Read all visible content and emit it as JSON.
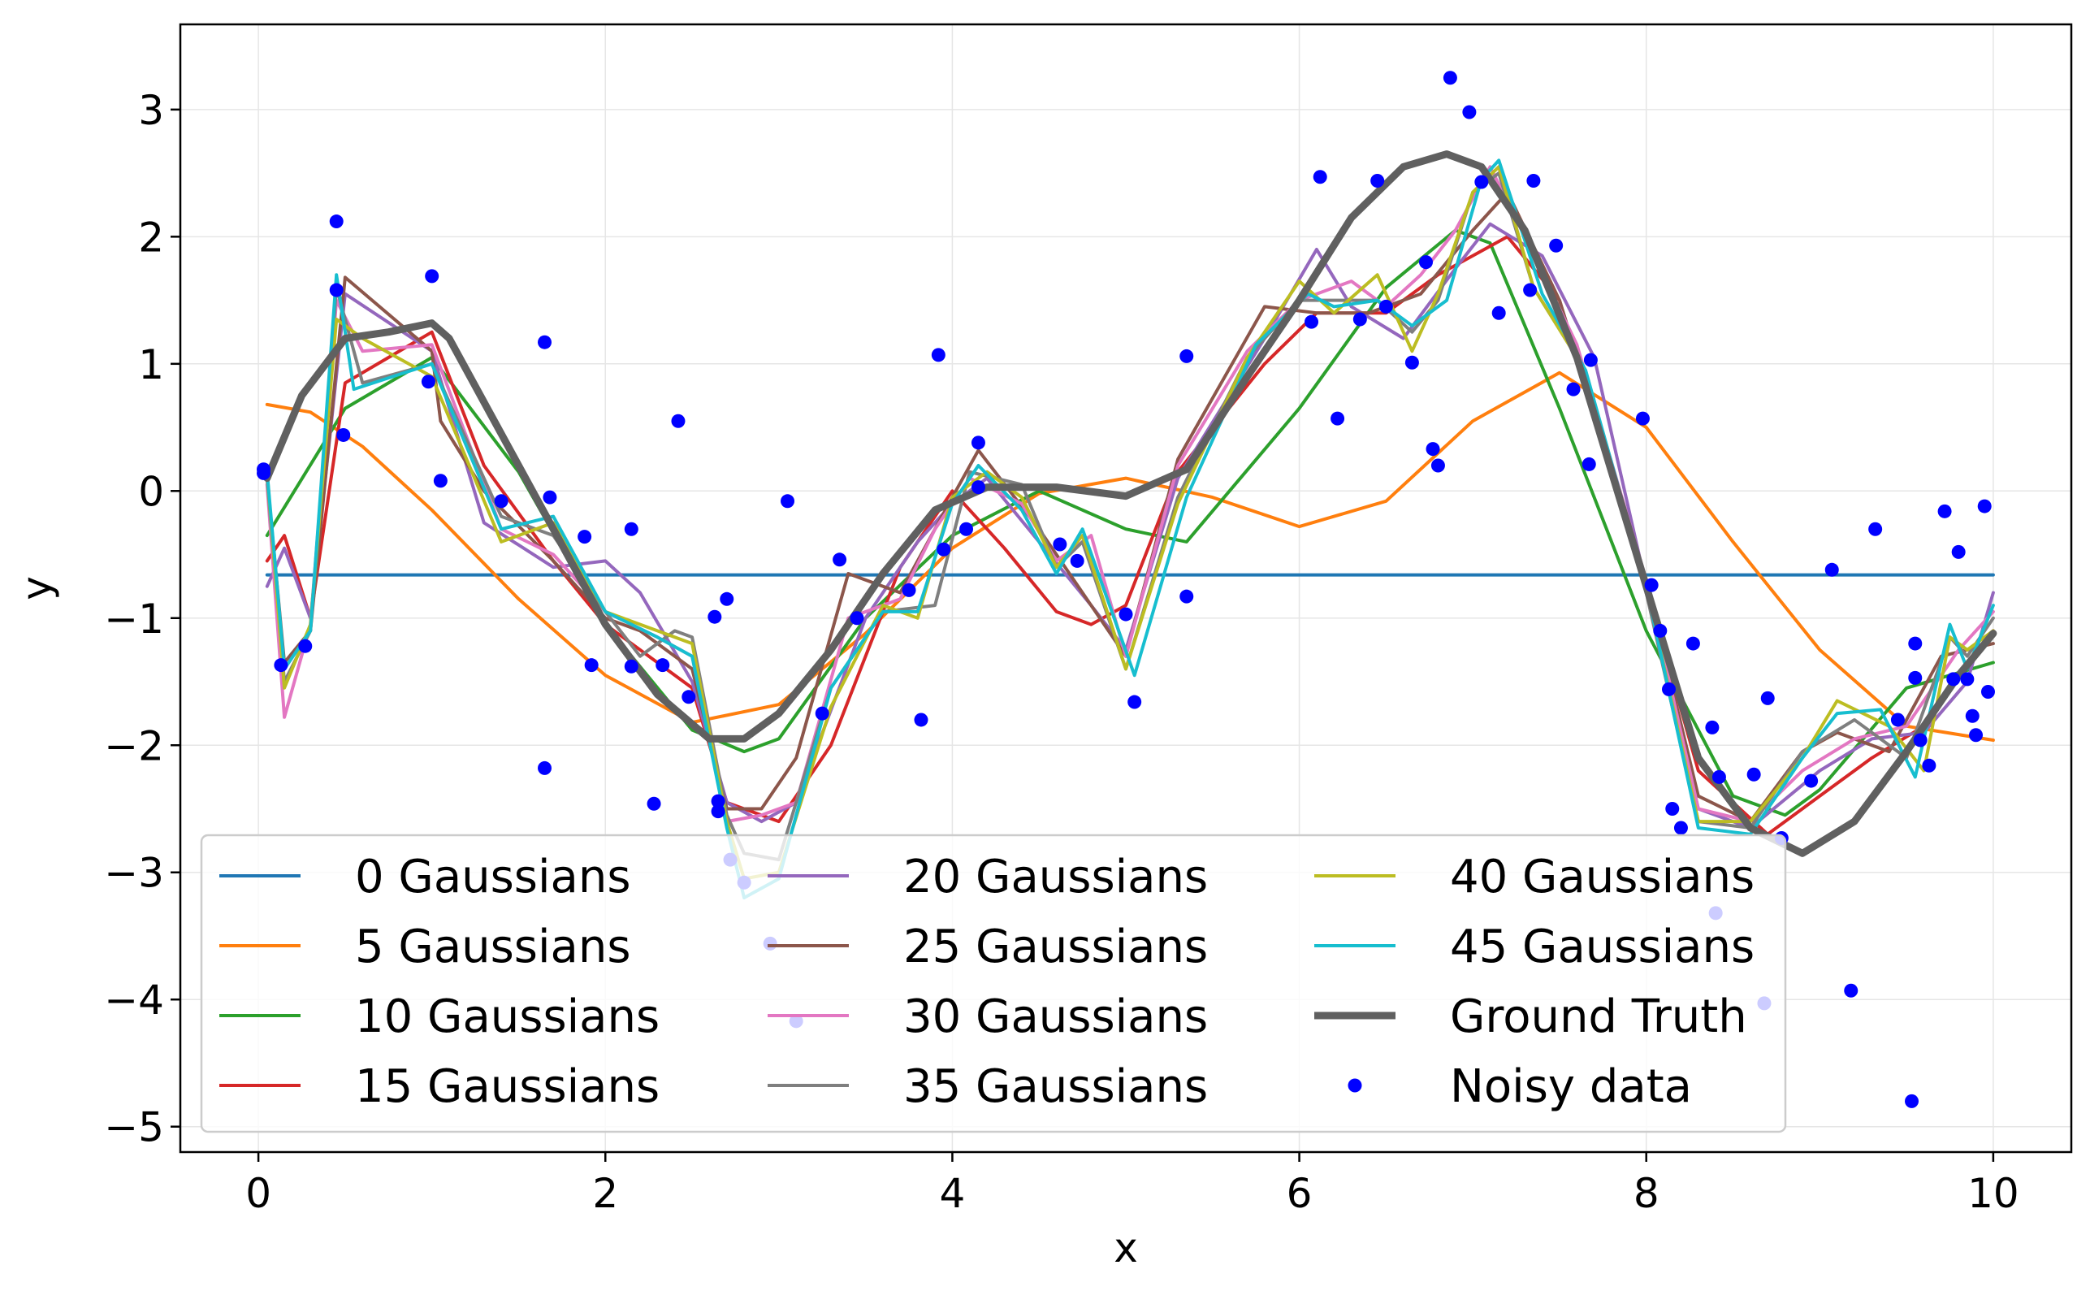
{
  "chart_data": {
    "type": "line",
    "xlabel": "x",
    "ylabel": "y",
    "xlim": [
      -0.45,
      10.45
    ],
    "ylim": [
      -5.2,
      3.67
    ],
    "xticks": [
      0,
      2,
      4,
      6,
      8,
      10
    ],
    "yticks": [
      -5,
      -4,
      -3,
      -2,
      -1,
      0,
      1,
      2,
      3
    ],
    "grid": true,
    "legend": {
      "placement": "lower-left",
      "columns": 3
    },
    "colors": {
      "0 Gaussians": "#1f77b4",
      "5 Gaussians": "#ff7f0e",
      "10 Gaussians": "#2ca02c",
      "15 Gaussians": "#d62728",
      "20 Gaussians": "#9467bd",
      "25 Gaussians": "#8c564b",
      "30 Gaussians": "#e377c2",
      "35 Gaussians": "#7f7f7f",
      "40 Gaussians": "#bcbd22",
      "45 Gaussians": "#17becf",
      "Ground Truth": "#606060",
      "Noisy data": "#0000ff"
    },
    "series": [
      {
        "name": "0 Gaussians",
        "x": [
          0.05,
          10.0
        ],
        "y": [
          -0.66,
          -0.66
        ]
      },
      {
        "name": "5 Gaussians",
        "x": [
          0.05,
          0.3,
          0.6,
          1.0,
          1.5,
          2.0,
          2.5,
          3.0,
          3.5,
          4.0,
          4.5,
          5.0,
          5.5,
          6.0,
          6.5,
          7.0,
          7.5,
          8.0,
          8.5,
          9.0,
          9.5,
          10.0
        ],
        "y": [
          0.68,
          0.62,
          0.35,
          -0.15,
          -0.85,
          -1.45,
          -1.82,
          -1.68,
          -1.12,
          -0.45,
          -0.02,
          0.1,
          -0.05,
          -0.28,
          -0.08,
          0.55,
          0.93,
          0.5,
          -0.4,
          -1.25,
          -1.85,
          -1.96
        ]
      },
      {
        "name": "10 Gaussians",
        "x": [
          0.05,
          0.5,
          1.0,
          1.5,
          2.0,
          2.5,
          2.8,
          3.0,
          3.5,
          4.0,
          4.5,
          5.0,
          5.35,
          6.0,
          6.5,
          6.9,
          7.1,
          7.5,
          8.0,
          8.5,
          8.8,
          9.0,
          9.5,
          10.0
        ],
        "y": [
          -0.35,
          0.65,
          1.05,
          0.15,
          -1.05,
          -1.88,
          -2.05,
          -1.95,
          -1.0,
          -0.35,
          0.0,
          -0.3,
          -0.4,
          0.65,
          1.6,
          2.05,
          1.95,
          0.65,
          -1.1,
          -2.4,
          -2.55,
          -2.35,
          -1.55,
          -1.35
        ]
      },
      {
        "name": "15 Gaussians",
        "x": [
          0.05,
          0.15,
          0.3,
          0.5,
          1.0,
          1.3,
          1.7,
          2.0,
          2.5,
          2.7,
          3.0,
          3.3,
          3.7,
          4.0,
          4.3,
          4.6,
          4.8,
          5.0,
          5.3,
          5.8,
          6.1,
          6.5,
          6.8,
          7.2,
          7.5,
          8.0,
          8.3,
          8.7,
          9.0,
          9.3,
          9.6,
          10.0
        ],
        "y": [
          -0.55,
          -0.35,
          -1.0,
          0.85,
          1.25,
          0.2,
          -0.55,
          -1.05,
          -1.55,
          -2.45,
          -2.6,
          -2.0,
          -0.6,
          0.0,
          -0.45,
          -0.95,
          -1.05,
          -0.9,
          0.15,
          1.0,
          1.4,
          1.4,
          1.7,
          2.0,
          1.5,
          -0.75,
          -2.2,
          -2.7,
          -2.4,
          -2.1,
          -1.85,
          -1.1
        ]
      },
      {
        "name": "20 Gaussians",
        "x": [
          0.05,
          0.15,
          0.3,
          0.5,
          1.0,
          1.3,
          1.7,
          2.0,
          2.2,
          2.5,
          2.7,
          2.9,
          3.1,
          3.5,
          3.8,
          4.0,
          4.2,
          4.5,
          4.8,
          5.0,
          5.3,
          5.8,
          6.1,
          6.3,
          6.6,
          6.9,
          7.1,
          7.4,
          7.7,
          8.0,
          8.3,
          8.6,
          9.0,
          9.3,
          9.6,
          9.85,
          10.0
        ],
        "y": [
          -0.75,
          -0.45,
          -1.0,
          1.55,
          1.1,
          -0.25,
          -0.6,
          -0.55,
          -0.8,
          -1.5,
          -2.45,
          -2.6,
          -2.45,
          -1.0,
          -0.4,
          -0.1,
          0.1,
          -0.4,
          -0.9,
          -1.25,
          0.1,
          1.2,
          1.9,
          1.45,
          1.2,
          1.75,
          2.1,
          1.85,
          1.05,
          -0.75,
          -2.5,
          -2.65,
          -2.2,
          -1.95,
          -1.9,
          -1.5,
          -0.8
        ]
      },
      {
        "name": "25 Gaussians",
        "x": [
          0.05,
          0.15,
          0.3,
          0.5,
          1.0,
          1.05,
          1.3,
          1.7,
          2.0,
          2.2,
          2.5,
          2.7,
          2.9,
          3.1,
          3.4,
          3.7,
          4.0,
          4.15,
          4.5,
          4.8,
          5.0,
          5.3,
          5.8,
          6.1,
          6.4,
          6.7,
          7.0,
          7.2,
          7.5,
          8.0,
          8.3,
          8.6,
          8.9,
          9.1,
          9.4,
          9.7,
          10.0
        ],
        "y": [
          0.1,
          -1.35,
          -1.1,
          1.68,
          1.1,
          0.55,
          0.0,
          -0.55,
          -1.0,
          -1.1,
          -1.4,
          -2.5,
          -2.5,
          -2.1,
          -0.65,
          -0.8,
          -0.05,
          0.32,
          -0.3,
          -0.9,
          -1.3,
          0.25,
          1.45,
          1.4,
          1.4,
          1.55,
          2.05,
          2.35,
          1.5,
          -0.7,
          -2.4,
          -2.6,
          -2.05,
          -1.9,
          -2.05,
          -1.3,
          -1.2
        ]
      },
      {
        "name": "30 Gaussians",
        "x": [
          0.05,
          0.15,
          0.3,
          0.45,
          0.6,
          1.0,
          1.4,
          1.7,
          2.0,
          2.3,
          2.5,
          2.7,
          2.9,
          3.1,
          3.4,
          3.7,
          3.9,
          4.1,
          4.4,
          4.6,
          4.8,
          5.0,
          5.3,
          5.7,
          6.0,
          6.3,
          6.5,
          6.7,
          6.9,
          7.1,
          7.3,
          7.6,
          8.0,
          8.3,
          8.6,
          8.9,
          9.2,
          9.5,
          9.8,
          10.0
        ],
        "y": [
          0.05,
          -1.78,
          -1.05,
          1.5,
          1.1,
          1.15,
          -0.3,
          -0.5,
          -0.95,
          -1.15,
          -1.3,
          -2.6,
          -2.55,
          -2.45,
          -1.0,
          -0.85,
          -0.3,
          0.1,
          -0.1,
          -0.55,
          -0.35,
          -1.3,
          0.2,
          1.1,
          1.5,
          1.65,
          1.45,
          1.7,
          2.05,
          2.55,
          2.0,
          1.15,
          -0.7,
          -2.5,
          -2.6,
          -2.2,
          -1.95,
          -1.85,
          -1.25,
          -0.95
        ]
      },
      {
        "name": "35 Gaussians",
        "x": [
          0.05,
          0.15,
          0.3,
          0.45,
          0.6,
          1.0,
          1.4,
          1.7,
          2.0,
          2.2,
          2.4,
          2.5,
          2.7,
          2.8,
          3.0,
          3.3,
          3.6,
          3.9,
          4.1,
          4.4,
          4.6,
          4.75,
          5.0,
          5.3,
          5.7,
          6.0,
          6.2,
          6.45,
          6.65,
          6.8,
          7.0,
          7.15,
          7.35,
          7.6,
          8.0,
          8.3,
          8.6,
          8.9,
          9.2,
          9.5,
          9.75,
          9.85,
          10.0
        ],
        "y": [
          0.1,
          -1.5,
          -1.1,
          1.6,
          0.85,
          1.0,
          -0.2,
          -0.35,
          -0.95,
          -1.3,
          -1.1,
          -1.15,
          -2.55,
          -2.85,
          -2.9,
          -1.55,
          -0.95,
          -0.9,
          0.15,
          0.05,
          -0.6,
          -0.4,
          -1.4,
          -0.05,
          1.05,
          1.5,
          1.5,
          1.5,
          1.25,
          1.5,
          2.35,
          2.5,
          1.6,
          1.05,
          -0.8,
          -2.6,
          -2.65,
          -2.05,
          -1.8,
          -2.1,
          -1.15,
          -1.3,
          -1.0
        ]
      },
      {
        "name": "40 Gaussians",
        "x": [
          0.05,
          0.15,
          0.3,
          0.45,
          0.6,
          1.0,
          1.4,
          1.7,
          2.0,
          2.3,
          2.5,
          2.7,
          2.8,
          3.0,
          3.3,
          3.6,
          3.8,
          4.0,
          4.2,
          4.4,
          4.6,
          4.75,
          5.0,
          5.3,
          5.7,
          6.0,
          6.2,
          6.45,
          6.65,
          6.8,
          7.0,
          7.15,
          7.35,
          7.6,
          8.0,
          8.3,
          8.6,
          8.9,
          9.1,
          9.4,
          9.6,
          9.75,
          9.85,
          10.0
        ],
        "y": [
          0.15,
          -1.55,
          -1.05,
          1.35,
          1.2,
          0.9,
          -0.4,
          -0.25,
          -0.95,
          -1.1,
          -1.2,
          -2.6,
          -3.05,
          -3.0,
          -1.7,
          -0.9,
          -1.0,
          -0.05,
          0.15,
          -0.05,
          -0.6,
          -0.35,
          -1.4,
          -0.1,
          1.05,
          1.65,
          1.4,
          1.7,
          1.1,
          1.55,
          2.35,
          2.55,
          1.6,
          1.05,
          -0.75,
          -2.6,
          -2.6,
          -2.1,
          -1.65,
          -1.85,
          -2.2,
          -1.15,
          -1.25,
          -1.1
        ]
      },
      {
        "name": "45 Gaussians",
        "x": [
          0.05,
          0.15,
          0.3,
          0.45,
          0.55,
          1.0,
          1.4,
          1.7,
          2.0,
          2.3,
          2.5,
          2.7,
          2.8,
          3.0,
          3.3,
          3.6,
          3.8,
          4.0,
          4.15,
          4.4,
          4.6,
          4.75,
          5.05,
          5.35,
          5.75,
          6.05,
          6.2,
          6.45,
          6.65,
          6.85,
          7.05,
          7.15,
          7.4,
          7.65,
          8.0,
          8.3,
          8.6,
          8.9,
          9.1,
          9.35,
          9.55,
          9.75,
          9.85,
          10.0
        ],
        "y": [
          0.15,
          -1.4,
          -1.1,
          1.7,
          0.8,
          1.0,
          -0.3,
          -0.2,
          -0.95,
          -1.15,
          -1.3,
          -2.65,
          -3.2,
          -3.05,
          -1.55,
          -0.95,
          -0.95,
          -0.1,
          0.2,
          -0.15,
          -0.65,
          -0.3,
          -1.45,
          -0.05,
          1.15,
          1.55,
          1.45,
          1.5,
          1.3,
          1.5,
          2.45,
          2.6,
          1.55,
          0.95,
          -0.75,
          -2.65,
          -2.7,
          -2.1,
          -1.75,
          -1.72,
          -2.25,
          -1.05,
          -1.4,
          -0.9
        ]
      },
      {
        "name": "Ground Truth",
        "x": [
          0.05,
          0.25,
          0.5,
          0.75,
          1.0,
          1.1,
          1.4,
          1.7,
          2.0,
          2.3,
          2.6,
          2.8,
          3.0,
          3.3,
          3.6,
          3.9,
          4.2,
          4.6,
          5.0,
          5.35,
          5.7,
          6.0,
          6.3,
          6.6,
          6.85,
          7.05,
          7.3,
          7.6,
          8.0,
          8.3,
          8.6,
          8.9,
          9.2,
          9.5,
          9.8,
          10.0
        ],
        "y": [
          0.1,
          0.75,
          1.2,
          1.25,
          1.32,
          1.2,
          0.45,
          -0.3,
          -1.05,
          -1.6,
          -1.95,
          -1.95,
          -1.75,
          -1.25,
          -0.65,
          -0.15,
          0.03,
          0.03,
          -0.04,
          0.17,
          0.9,
          1.5,
          2.15,
          2.55,
          2.65,
          2.55,
          2.05,
          1.05,
          -0.75,
          -2.1,
          -2.65,
          -2.85,
          -2.6,
          -2.05,
          -1.45,
          -1.12
        ]
      }
    ],
    "noisy_data": {
      "name": "Noisy data",
      "points": [
        [
          0.03,
          0.17
        ],
        [
          0.03,
          0.14
        ],
        [
          0.13,
          -1.37
        ],
        [
          0.27,
          -1.22
        ],
        [
          0.45,
          2.12
        ],
        [
          0.45,
          1.58
        ],
        [
          0.49,
          0.44
        ],
        [
          0.98,
          0.86
        ],
        [
          1.0,
          1.69
        ],
        [
          1.05,
          0.08
        ],
        [
          1.4,
          -0.08
        ],
        [
          1.65,
          1.17
        ],
        [
          1.65,
          -2.18
        ],
        [
          1.68,
          -0.05
        ],
        [
          1.88,
          -0.36
        ],
        [
          1.92,
          -1.37
        ],
        [
          2.15,
          -1.38
        ],
        [
          2.15,
          -0.3
        ],
        [
          2.28,
          -2.46
        ],
        [
          2.33,
          -1.37
        ],
        [
          2.42,
          0.55
        ],
        [
          2.48,
          -1.62
        ],
        [
          2.63,
          -0.99
        ],
        [
          2.65,
          -2.44
        ],
        [
          2.65,
          -2.52
        ],
        [
          2.7,
          -0.85
        ],
        [
          2.72,
          -2.9
        ],
        [
          2.8,
          -3.08
        ],
        [
          2.95,
          -3.56
        ],
        [
          3.05,
          -0.08
        ],
        [
          3.1,
          -4.17
        ],
        [
          3.25,
          -1.75
        ],
        [
          3.35,
          -0.54
        ],
        [
          3.45,
          -1.0
        ],
        [
          3.75,
          -0.78
        ],
        [
          3.82,
          -1.8
        ],
        [
          3.92,
          1.07
        ],
        [
          3.95,
          -0.46
        ],
        [
          4.08,
          -0.3
        ],
        [
          4.15,
          0.38
        ],
        [
          4.15,
          0.03
        ],
        [
          4.62,
          -0.42
        ],
        [
          4.72,
          -0.55
        ],
        [
          5.0,
          -0.97
        ],
        [
          5.05,
          -1.66
        ],
        [
          5.35,
          1.06
        ],
        [
          5.35,
          -0.83
        ],
        [
          6.07,
          1.33
        ],
        [
          6.12,
          2.47
        ],
        [
          6.22,
          0.57
        ],
        [
          6.35,
          1.35
        ],
        [
          6.45,
          2.44
        ],
        [
          6.5,
          1.45
        ],
        [
          6.65,
          1.01
        ],
        [
          6.73,
          1.8
        ],
        [
          6.77,
          0.33
        ],
        [
          6.8,
          0.2
        ],
        [
          6.87,
          3.25
        ],
        [
          6.98,
          2.98
        ],
        [
          7.05,
          2.43
        ],
        [
          7.15,
          1.4
        ],
        [
          7.33,
          1.58
        ],
        [
          7.35,
          2.44
        ],
        [
          7.48,
          1.93
        ],
        [
          7.58,
          0.8
        ],
        [
          7.67,
          0.21
        ],
        [
          7.68,
          1.03
        ],
        [
          7.98,
          0.57
        ],
        [
          8.03,
          -0.74
        ],
        [
          8.08,
          -1.1
        ],
        [
          8.13,
          -1.56
        ],
        [
          8.15,
          -2.5
        ],
        [
          8.2,
          -2.65
        ],
        [
          8.27,
          -1.2
        ],
        [
          8.38,
          -1.86
        ],
        [
          8.4,
          -3.32
        ],
        [
          8.42,
          -2.25
        ],
        [
          8.62,
          -2.23
        ],
        [
          8.68,
          -4.03
        ],
        [
          8.7,
          -1.63
        ],
        [
          8.78,
          -2.73
        ],
        [
          8.95,
          -2.28
        ],
        [
          9.07,
          -0.62
        ],
        [
          9.18,
          -3.93
        ],
        [
          9.32,
          -0.3
        ],
        [
          9.45,
          -1.8
        ],
        [
          9.53,
          -4.8
        ],
        [
          9.55,
          -1.2
        ],
        [
          9.55,
          -1.47
        ],
        [
          9.58,
          -1.96
        ],
        [
          9.63,
          -2.16
        ],
        [
          9.72,
          -0.16
        ],
        [
          9.77,
          -1.48
        ],
        [
          9.8,
          -0.48
        ],
        [
          9.85,
          -1.48
        ],
        [
          9.88,
          -1.77
        ],
        [
          9.9,
          -1.92
        ],
        [
          9.95,
          -0.12
        ],
        [
          9.97,
          -1.58
        ]
      ]
    }
  }
}
